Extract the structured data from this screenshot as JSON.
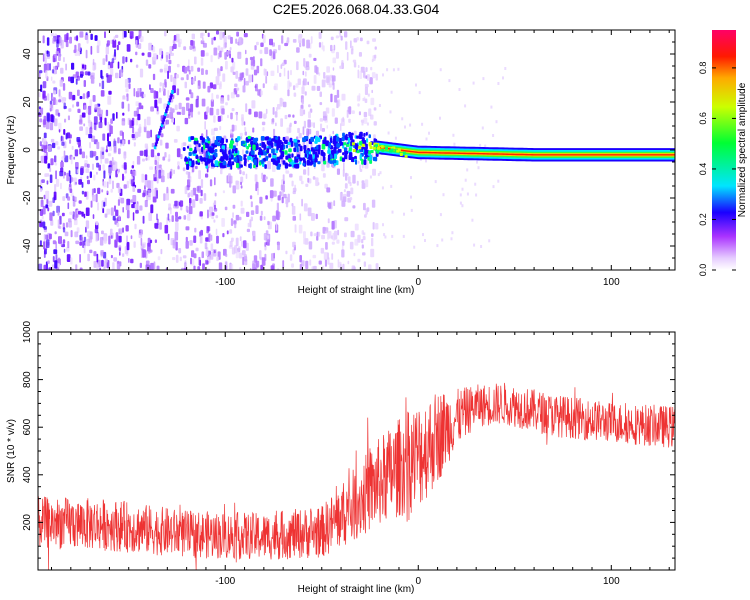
{
  "figure_title": "C2E5.2026.068.04.33.G04",
  "chart_data": [
    {
      "type": "heatmap",
      "title": "C2E5.2026.068.04.33.G04",
      "xlabel": "Height of straight line (km)",
      "ylabel": "Frequency (Hz)",
      "xlim": [
        -197,
        133
      ],
      "ylim": [
        -50,
        50
      ],
      "xticks": [
        -100,
        0,
        100
      ],
      "yticks": [
        -40,
        -20,
        0,
        20,
        40
      ],
      "colorbar": {
        "label": "Normalized spectral amplitude",
        "range": [
          0.0,
          0.95
        ],
        "ticks": [
          0.0,
          0.2,
          0.4,
          0.6,
          0.8
        ]
      },
      "features": {
        "diffuse_noise_x_range": [
          -197,
          -30
        ],
        "signal_band_center_hz": [
          {
            "x": -120,
            "y": 0
          },
          {
            "x": -60,
            "y": 0
          },
          {
            "x": -30,
            "y": 2
          },
          {
            "x": -20,
            "y": 1
          },
          {
            "x": 0,
            "y": -1
          },
          {
            "x": 60,
            "y": -2
          },
          {
            "x": 133,
            "y": -2
          }
        ],
        "streak": [
          {
            "x": -137,
            "y": 2
          },
          {
            "x": -128,
            "y": 25
          }
        ]
      }
    },
    {
      "type": "line",
      "xlabel": "Height of straight line (km)",
      "ylabel": "SNR (10 * v/v)",
      "xlim": [
        -197,
        133
      ],
      "ylim": [
        0,
        1000
      ],
      "xticks": [
        -100,
        0,
        100
      ],
      "yticks": [
        200,
        400,
        600,
        800,
        1000
      ],
      "color": "#ee3333",
      "envelope": [
        {
          "x": -197,
          "mean": 200,
          "spread": 110
        },
        {
          "x": -160,
          "mean": 190,
          "spread": 110
        },
        {
          "x": -120,
          "mean": 150,
          "spread": 100
        },
        {
          "x": -80,
          "mean": 140,
          "spread": 100
        },
        {
          "x": -50,
          "mean": 160,
          "spread": 110
        },
        {
          "x": -35,
          "mean": 260,
          "spread": 150
        },
        {
          "x": -20,
          "mean": 370,
          "spread": 190
        },
        {
          "x": -10,
          "mean": 430,
          "spread": 210
        },
        {
          "x": 0,
          "mean": 480,
          "spread": 230
        },
        {
          "x": 10,
          "mean": 560,
          "spread": 200
        },
        {
          "x": 20,
          "mean": 640,
          "spread": 120
        },
        {
          "x": 30,
          "mean": 690,
          "spread": 90
        },
        {
          "x": 45,
          "mean": 700,
          "spread": 90
        },
        {
          "x": 70,
          "mean": 650,
          "spread": 90
        },
        {
          "x": 100,
          "mean": 620,
          "spread": 85
        },
        {
          "x": 133,
          "mean": 600,
          "spread": 90
        }
      ],
      "series": [
        {
          "name": "SNR",
          "x_range": [
            -197,
            133
          ]
        }
      ]
    }
  ]
}
